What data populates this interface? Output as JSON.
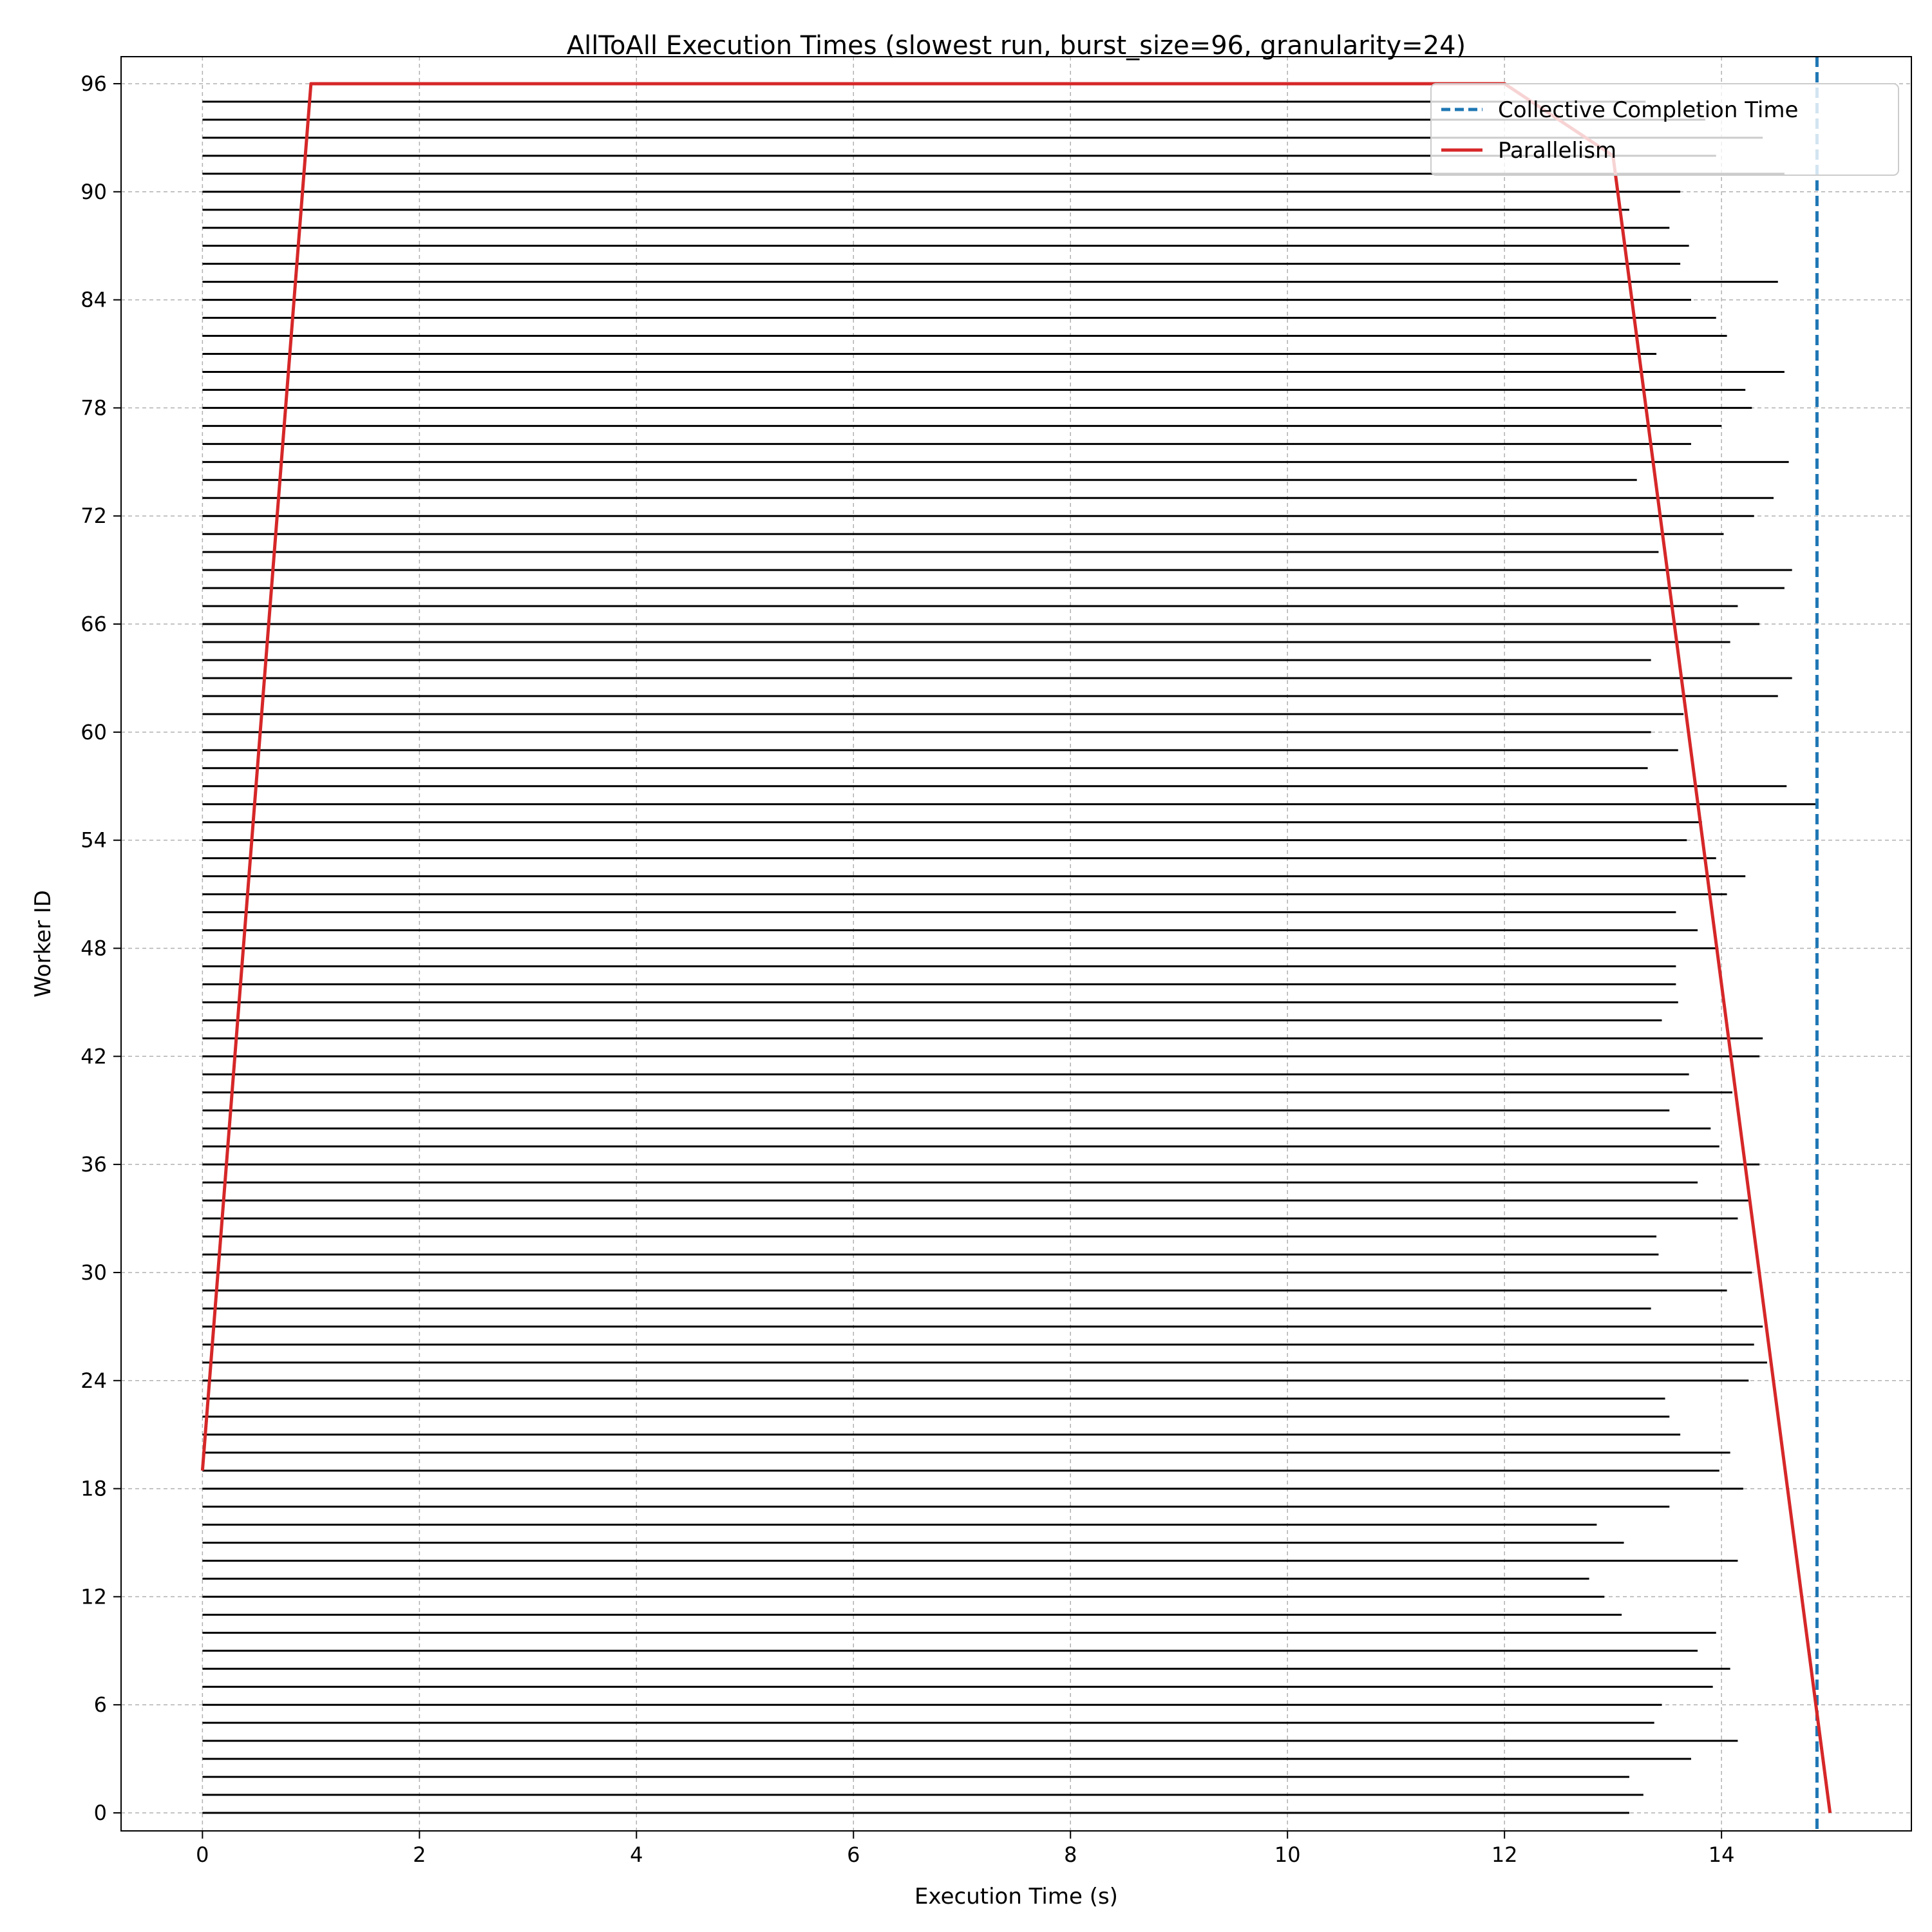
{
  "chart_data": {
    "type": "bar",
    "orientation": "horizontal",
    "title": "AllToAll Execution Times (slowest run, burst_size=96, granularity=24)",
    "xlabel": "Execution Time (s)",
    "ylabel": "Worker ID",
    "xlim": [
      -0.75,
      15.75
    ],
    "ylim": [
      -1,
      97.5
    ],
    "x_ticks": [
      0,
      2,
      4,
      6,
      8,
      10,
      12,
      14
    ],
    "y_ticks": [
      0,
      6,
      12,
      18,
      24,
      30,
      36,
      42,
      48,
      54,
      60,
      66,
      72,
      78,
      84,
      90,
      96
    ],
    "grid": true,
    "legend_position": "top-right",
    "workers": {
      "start_time": 0,
      "end_times": [
        13.15,
        13.28,
        13.15,
        13.72,
        14.15,
        13.38,
        13.45,
        13.92,
        14.08,
        13.78,
        13.95,
        13.08,
        12.92,
        12.78,
        14.15,
        13.1,
        12.85,
        13.52,
        14.2,
        13.98,
        14.08,
        13.62,
        13.52,
        13.48,
        14.25,
        14.42,
        14.3,
        14.38,
        13.35,
        14.05,
        14.28,
        13.42,
        13.4,
        14.15,
        14.25,
        13.78,
        14.35,
        13.98,
        13.9,
        13.52,
        14.1,
        13.7,
        14.35,
        14.38,
        13.45,
        13.6,
        13.58,
        13.58,
        13.95,
        13.78,
        13.58,
        14.05,
        14.22,
        13.95,
        13.68,
        13.82,
        14.88,
        14.6,
        13.32,
        13.6,
        13.35,
        13.65,
        14.52,
        14.65,
        13.35,
        14.08,
        14.35,
        14.15,
        14.58,
        14.65,
        13.42,
        14.02,
        14.3,
        14.48,
        13.22,
        14.62,
        13.72,
        14.0,
        14.28,
        14.22,
        14.58,
        13.4,
        14.05,
        13.95,
        13.72,
        14.52,
        13.62,
        13.7,
        13.52,
        13.15,
        13.62,
        14.58,
        13.95,
        14.38,
        13.85,
        13.3
      ],
      "color": "#000000"
    },
    "series": [
      {
        "name": "Collective Completion Time",
        "style": "dashed-vertical",
        "color": "#1f77b4",
        "x": 14.88
      },
      {
        "name": "Parallelism",
        "style": "line",
        "color": "#d62728",
        "points": [
          [
            0,
            19
          ],
          [
            1,
            96
          ],
          [
            12,
            96
          ],
          [
            13,
            92
          ],
          [
            15,
            0
          ]
        ]
      }
    ]
  }
}
